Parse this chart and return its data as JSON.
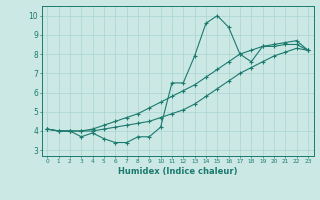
{
  "xlabel": "Humidex (Indice chaleur)",
  "ylabel": "",
  "bg_color": "#cce8e5",
  "line_color": "#1a7a6e",
  "grid_color": "#aad4d0",
  "xlim": [
    -0.5,
    23.5
  ],
  "ylim": [
    2.7,
    10.5
  ],
  "xticks": [
    0,
    1,
    2,
    3,
    4,
    5,
    6,
    7,
    8,
    9,
    10,
    11,
    12,
    13,
    14,
    15,
    16,
    17,
    18,
    19,
    20,
    21,
    22,
    23
  ],
  "yticks": [
    3,
    4,
    5,
    6,
    7,
    8,
    9,
    10
  ],
  "line1_x": [
    0,
    1,
    2,
    3,
    4,
    5,
    6,
    7,
    8,
    9,
    10,
    11,
    12,
    13,
    14,
    15,
    16,
    17,
    18,
    19,
    20,
    21,
    22,
    23
  ],
  "line1_y": [
    4.1,
    4.0,
    4.0,
    3.7,
    3.9,
    3.6,
    3.4,
    3.4,
    3.7,
    3.7,
    4.2,
    6.5,
    6.5,
    7.9,
    9.6,
    10.0,
    9.4,
    8.0,
    7.6,
    8.4,
    8.4,
    8.5,
    8.5,
    8.2
  ],
  "line2_x": [
    0,
    1,
    2,
    3,
    4,
    5,
    6,
    7,
    8,
    9,
    10,
    11,
    12,
    13,
    14,
    15,
    16,
    17,
    18,
    19,
    20,
    21,
    22,
    23
  ],
  "line2_y": [
    4.1,
    4.0,
    4.0,
    4.0,
    4.0,
    4.1,
    4.2,
    4.3,
    4.4,
    4.5,
    4.7,
    4.9,
    5.1,
    5.4,
    5.8,
    6.2,
    6.6,
    7.0,
    7.3,
    7.6,
    7.9,
    8.1,
    8.3,
    8.2
  ],
  "line3_x": [
    0,
    1,
    2,
    3,
    4,
    5,
    6,
    7,
    8,
    9,
    10,
    11,
    12,
    13,
    14,
    15,
    16,
    17,
    18,
    19,
    20,
    21,
    22,
    23
  ],
  "line3_y": [
    4.1,
    4.0,
    4.0,
    4.0,
    4.1,
    4.3,
    4.5,
    4.7,
    4.9,
    5.2,
    5.5,
    5.8,
    6.1,
    6.4,
    6.8,
    7.2,
    7.6,
    8.0,
    8.2,
    8.4,
    8.5,
    8.6,
    8.7,
    8.2
  ]
}
